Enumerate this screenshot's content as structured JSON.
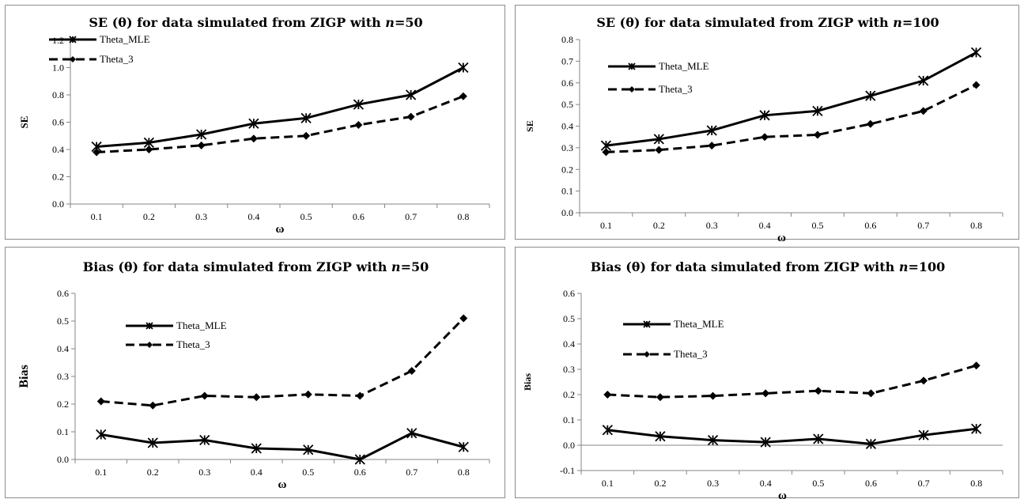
{
  "chart_data": [
    {
      "type": "line",
      "title": "SE (θ) for data simulated from ZIGP with n=50",
      "title_parts": {
        "pre": "SE (θ) for data simulated from ZIGP with ",
        "n": "n",
        "post": "=50"
      },
      "xlabel": "ω",
      "ylabel": "SE",
      "categories": [
        "0.1",
        "0.2",
        "0.3",
        "0.4",
        "0.5",
        "0.6",
        "0.7",
        "0.8"
      ],
      "ylim": [
        0,
        1.2
      ],
      "yticks": [
        "0.0",
        "0.2",
        "0.4",
        "0.6",
        "0.8",
        "1.0",
        "1.2"
      ],
      "legend_position": "top-left",
      "series": [
        {
          "name": "Theta_MLE",
          "values": [
            0.42,
            0.45,
            0.51,
            0.59,
            0.63,
            0.73,
            0.8,
            1.0
          ]
        },
        {
          "name": "Theta_3",
          "values": [
            0.38,
            0.4,
            0.43,
            0.48,
            0.5,
            0.58,
            0.64,
            0.79
          ]
        }
      ]
    },
    {
      "type": "line",
      "title": "SE (θ) for data simulated from ZIGP with n=100",
      "title_parts": {
        "pre": "SE (θ) for data simulated from ZIGP with ",
        "n": "n",
        "post": "=100"
      },
      "xlabel": "ω",
      "ylabel": "SE",
      "categories": [
        "0.1",
        "0.2",
        "0.3",
        "0.4",
        "0.5",
        "0.6",
        "0.7",
        "0.8"
      ],
      "ylim": [
        0,
        0.8
      ],
      "yticks": [
        "0.0",
        "0.1",
        "0.2",
        "0.3",
        "0.4",
        "0.5",
        "0.6",
        "0.7",
        "0.8"
      ],
      "legend_position": "top-left",
      "series": [
        {
          "name": "Theta_MLE",
          "values": [
            0.31,
            0.34,
            0.38,
            0.45,
            0.47,
            0.54,
            0.61,
            0.74
          ]
        },
        {
          "name": "Theta_3",
          "values": [
            0.28,
            0.29,
            0.31,
            0.35,
            0.36,
            0.41,
            0.47,
            0.59
          ]
        }
      ]
    },
    {
      "type": "line",
      "title": "Bias (θ) for data simulated from ZIGP with n=50",
      "title_parts": {
        "pre": "Bias (θ) for data simulated from ZIGP with ",
        "n": "n",
        "post": "=50"
      },
      "xlabel": "ω",
      "ylabel": "Bias",
      "categories": [
        "0.1",
        "0.2",
        "0.3",
        "0.4",
        "0.5",
        "0.6",
        "0.7",
        "0.8"
      ],
      "ylim": [
        0,
        0.6
      ],
      "yticks": [
        "0.0",
        "0.1",
        "0.2",
        "0.3",
        "0.4",
        "0.5",
        "0.6"
      ],
      "legend_position": "top-left",
      "series": [
        {
          "name": "Theta_MLE",
          "values": [
            0.09,
            0.06,
            0.07,
            0.04,
            0.035,
            0.0,
            0.095,
            0.045
          ]
        },
        {
          "name": "Theta_3",
          "values": [
            0.21,
            0.195,
            0.23,
            0.225,
            0.235,
            0.23,
            0.32,
            0.51
          ]
        }
      ]
    },
    {
      "type": "line",
      "title": "Bias (θ) for data simulated from ZIGP with n=100",
      "title_parts": {
        "pre": "Bias (θ) for data simulated from ZIGP with ",
        "n": "n",
        "post": "=100"
      },
      "xlabel": "ω",
      "ylabel": "Bias",
      "categories": [
        "0.1",
        "0.2",
        "0.3",
        "0.4",
        "0.5",
        "0.6",
        "0.7",
        "0.8"
      ],
      "ylim": [
        -0.1,
        0.6
      ],
      "yticks": [
        "-0.1",
        "0.0",
        "0.1",
        "0.2",
        "0.3",
        "0.4",
        "0.5",
        "0.6"
      ],
      "legend_position": "top-left",
      "series": [
        {
          "name": "Theta_MLE",
          "values": [
            0.06,
            0.035,
            0.02,
            0.012,
            0.025,
            0.005,
            0.04,
            0.065
          ]
        },
        {
          "name": "Theta_3",
          "values": [
            0.2,
            0.19,
            0.195,
            0.205,
            0.215,
            0.205,
            0.255,
            0.315
          ]
        }
      ]
    }
  ]
}
